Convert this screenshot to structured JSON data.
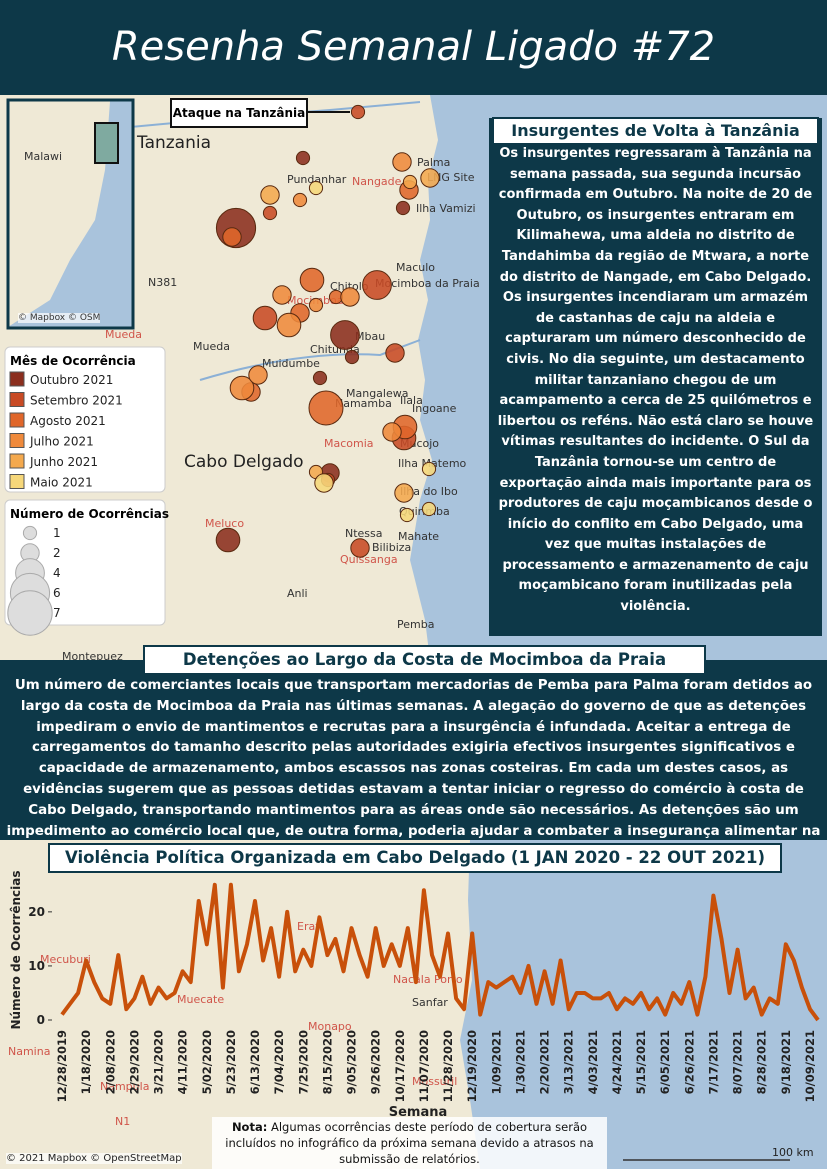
{
  "header": {
    "title": "Resenha Semanal Ligado #72"
  },
  "map": {
    "callout": "Ataque na Tanzânia",
    "inset_credit": "© Mapbox © OSM",
    "credit": "© 2021 Mapbox © OpenStreetMap",
    "scale": "100 km",
    "labels": [
      "Tanzania",
      "Malawi",
      "Palma",
      "Pundanhar",
      "Nangade",
      "LNG Site",
      "Ilha Vamizi",
      "N381",
      "Maculo",
      "Mocimboa da Praia",
      "Chitolo",
      "Mocimboa",
      "Mueda",
      "Chitunda",
      "Mbau",
      "Muidumbe",
      "Mangalewa",
      "Namamba",
      "Macomia",
      "Ilala",
      "Ingoane",
      "Mucojo",
      "Ilha Matemo",
      "Cabo Delgado",
      "Ilha do Ibo",
      "Quirimba",
      "Meluco",
      "Ntessa",
      "Mahate",
      "Bilibiza",
      "Quissanga",
      "Anli",
      "Pemba",
      "Montepuez",
      "Mueda"
    ],
    "legend_title": "Mês de Ocorrência",
    "months": [
      {
        "label": "Outubro 2021",
        "color": "#8b2e1e",
        "counts": [
          6,
          1,
          1,
          3,
          4,
          2,
          1,
          1
        ]
      },
      {
        "label": "Setembro 2021",
        "color": "#c84a24",
        "counts": [
          1,
          4,
          3,
          2,
          2,
          1,
          3,
          1
        ]
      },
      {
        "label": "Agosto 2021",
        "color": "#e0662a",
        "counts": [
          5,
          3,
          2,
          2,
          2,
          3,
          1,
          2
        ]
      },
      {
        "label": "Julho 2021",
        "color": "#ef8a3c",
        "counts": [
          2,
          3,
          1,
          2,
          3,
          2,
          1,
          2,
          2
        ]
      },
      {
        "label": "Junho 2021",
        "color": "#f4a94e",
        "counts": [
          2,
          1,
          2,
          1,
          2
        ]
      },
      {
        "label": "Maio 2021",
        "color": "#f6d77a",
        "counts": [
          1,
          1,
          1,
          1,
          2
        ]
      }
    ],
    "size_legend_title": "Número de Ocorrências",
    "size_legend": [
      1,
      2,
      4,
      6,
      7
    ]
  },
  "article": {
    "title": "Insurgentes de Volta à Tanzânia",
    "body": "Os insurgentes regressaram à Tanzânia na semana passada, sua segunda incursão confirmada em Outubro. Na noite de 20 de Outubro, os insurgentes entraram em Kilimahewa, uma aldeia no distrito de Tandahimba da região de Mtwara, a norte do distrito de Nangade, em Cabo Delgado. Os insurgentes incendiaram um armazém de castanhas de caju na aldeia e capturaram um número desconhecido de civis. No dia seguinte, um destacamento militar tanzaniano chegou de um acampamento a cerca de 25 quilómetros e libertou os reféns. Não está claro se houve vítimas resultantes do incidente. O Sul da Tanzânia tornou-se um centro de exportação ainda mais importante para os produtores de caju moçambicanos desde o início do conflito em Cabo Delgado, uma vez que muitas instalações de processamento e armazenamento de caju moçambicano foram inutilizadas pela violência."
  },
  "section": {
    "title": "Detenções ao Largo da Costa de Mocimboa da Praia",
    "body": "Um número de comerciantes locais que transportam mercadorias de Pemba para Palma foram detidos ao largo da costa de Mocimboa da Praia nas últimas semanas. A alegação do governo de que as detenções impediram o envio de mantimentos e recrutas para a insurgência é infundada. Aceitar a entrega de carregamentos do tamanho descrito pelas autoridades exigiria efectivos insurgentes significativos e capacidade de armazenamento, ambos escassos nas zonas costeiras. Em cada um destes casos, as evidências sugerem que as pessoas detidas estavam a tentar iniciar o regresso do comércio à costa de Cabo Delgado, transportando mantimentos para as áreas onde são necessários. As detenções são um impedimento ao comércio local que, de outra forma, poderia ajudar a combater a insegurança alimentar na província."
  },
  "note": {
    "lead": "Nota:",
    "text": "Algumas ocorrências deste período de cobertura serão incluídos no infográfico da próxima semana devido a atrasos na submissão de relatórios."
  },
  "chart_background_labels": [
    "Mecuburi",
    "Erati",
    "Muecate",
    "Nacala Porto",
    "Sanfar",
    "Monapo",
    "Namina",
    "Nampula",
    "N1",
    "Mossuril"
  ],
  "chart_data": {
    "type": "line",
    "title": "Violência Política Organizada em Cabo Delgado (1 JAN 2020 - 22 OUT 2021)",
    "y_label": "Número de Ocorrências",
    "x_label": "Semana",
    "color": "#c8500a",
    "categories": [
      "12/28/2019",
      null,
      null,
      "1/18/2020",
      null,
      null,
      "2/08/2020",
      null,
      null,
      "2/29/2020",
      null,
      null,
      "3/21/2020",
      null,
      null,
      "4/11/2020",
      null,
      null,
      "5/02/2020",
      null,
      null,
      "5/23/2020",
      null,
      null,
      "6/13/2020",
      null,
      null,
      "7/04/2020",
      null,
      null,
      "7/25/2020",
      null,
      null,
      "8/15/2020",
      null,
      null,
      "9/05/2020",
      null,
      null,
      "9/26/2020",
      null,
      null,
      "10/17/2020",
      null,
      null,
      "11/07/2020",
      null,
      null,
      "11/28/2020",
      null,
      null,
      "12/19/2020",
      null,
      null,
      "1/09/2021",
      null,
      null,
      "1/30/2021",
      null,
      null,
      "2/20/2021",
      null,
      null,
      "3/13/2021",
      null,
      null,
      "4/03/2021",
      null,
      null,
      "4/24/2021",
      null,
      null,
      "5/15/2021",
      null,
      null,
      "6/05/2021",
      null,
      null,
      "6/26/2021",
      null,
      null,
      "7/17/2021",
      null,
      null,
      "8/07/2021",
      null,
      null,
      "8/28/2021",
      null,
      null,
      "9/18/2021",
      null,
      null,
      "10/09/2021",
      null
    ],
    "values": [
      1,
      3,
      5,
      11,
      7,
      4,
      3,
      12,
      2,
      4,
      8,
      3,
      6,
      4,
      5,
      9,
      7,
      22,
      14,
      25,
      6,
      25,
      9,
      14,
      22,
      11,
      17,
      8,
      20,
      9,
      13,
      10,
      19,
      12,
      15,
      9,
      17,
      12,
      8,
      17,
      10,
      14,
      10,
      17,
      7,
      24,
      12,
      8,
      16,
      4,
      2,
      16,
      1,
      7,
      6,
      7,
      8,
      5,
      10,
      3,
      9,
      3,
      11,
      2,
      5,
      5,
      4,
      4,
      5,
      2,
      4,
      3,
      5,
      2,
      4,
      1,
      5,
      3,
      7,
      1,
      8,
      23,
      15,
      5,
      13,
      4,
      6,
      1,
      4,
      3,
      14,
      11,
      6,
      2,
      0
    ],
    "ylim": [
      0,
      27
    ],
    "yticks": [
      0,
      10,
      20
    ]
  }
}
